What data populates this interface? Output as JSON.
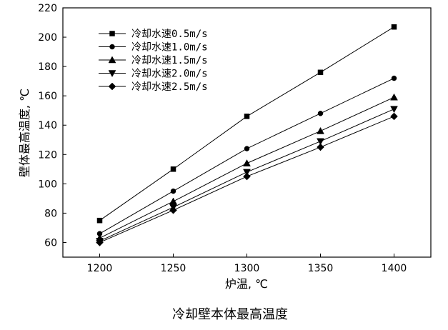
{
  "chart_data": {
    "type": "line",
    "title": "冷却壁本体最高温度",
    "xlabel": "炉温, ℃",
    "ylabel": "壁体最高温度, ℃",
    "x": [
      1200,
      1250,
      1300,
      1350,
      1400
    ],
    "xlim": [
      1175,
      1425
    ],
    "ylim": [
      50,
      220
    ],
    "xticks": [
      1200,
      1250,
      1300,
      1350,
      1400
    ],
    "yticks": [
      60,
      80,
      100,
      120,
      140,
      160,
      180,
      200,
      220
    ],
    "legend_position": "top-left",
    "series": [
      {
        "name": "冷却水速0.5m/s",
        "marker": "square",
        "values": [
          75,
          110,
          146,
          176,
          207
        ]
      },
      {
        "name": "冷却水速1.0m/s",
        "marker": "circle",
        "values": [
          66,
          95,
          124,
          148,
          172
        ]
      },
      {
        "name": "冷却水速1.5m/s",
        "marker": "triangle-up",
        "values": [
          63,
          88,
          114,
          136,
          159
        ]
      },
      {
        "name": "冷却水速2.0m/s",
        "marker": "triangle-down",
        "values": [
          61,
          84,
          108,
          129,
          151
        ]
      },
      {
        "name": "冷却水速2.5m/s",
        "marker": "diamond",
        "values": [
          60,
          82,
          105,
          125,
          146
        ]
      }
    ]
  }
}
